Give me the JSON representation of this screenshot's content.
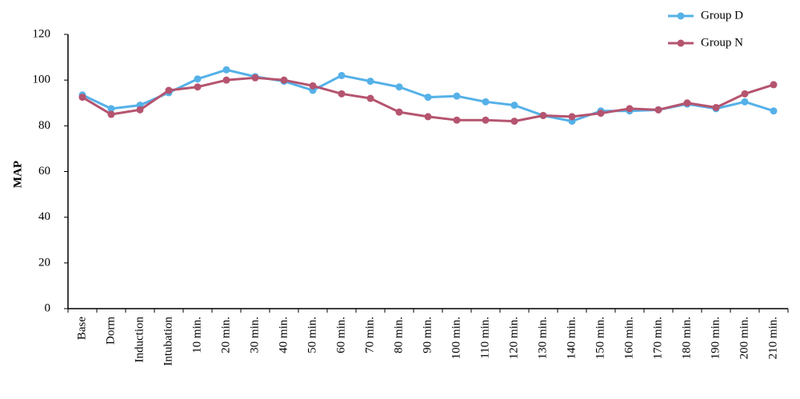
{
  "chart_data": {
    "type": "line",
    "ylabel": "MAP",
    "xlabel": "",
    "ylim": [
      0,
      120
    ],
    "yticks": [
      "0",
      "20",
      "40",
      "60",
      "80",
      "100",
      "120"
    ],
    "grid": false,
    "legend_position": "top-right",
    "categories": [
      "Base",
      "Dorm",
      "Induction",
      "Intubation",
      "10 min.",
      "20 min.",
      "30 min.",
      "40 min.",
      "50 min.",
      "60 min.",
      "70 min.",
      "80 min.",
      "90 min.",
      "100 min.",
      "110 min.",
      "120 min.",
      "130 min.",
      "140 min.",
      "150 min.",
      "160 min.",
      "170 min.",
      "180 min.",
      "190 min.",
      "200 min.",
      "210 min."
    ],
    "series": [
      {
        "name": "Group D",
        "color": "#55b1e8",
        "values": [
          93.5,
          87.5,
          89,
          94.5,
          100.5,
          104.5,
          101.5,
          99.5,
          95.5,
          102,
          99.5,
          97,
          92.5,
          93,
          90.5,
          89,
          84.5,
          82,
          86.5,
          86.5,
          87,
          89.5,
          87.5,
          90.5,
          86.5
        ]
      },
      {
        "name": "Group N",
        "color": "#b5546f",
        "values": [
          92.5,
          85,
          87,
          95.5,
          97,
          100,
          101,
          100,
          97.5,
          94,
          92,
          86,
          84,
          82.5,
          82.5,
          82,
          84.5,
          84,
          85.5,
          87.5,
          87,
          90,
          88,
          94,
          98
        ]
      }
    ]
  }
}
